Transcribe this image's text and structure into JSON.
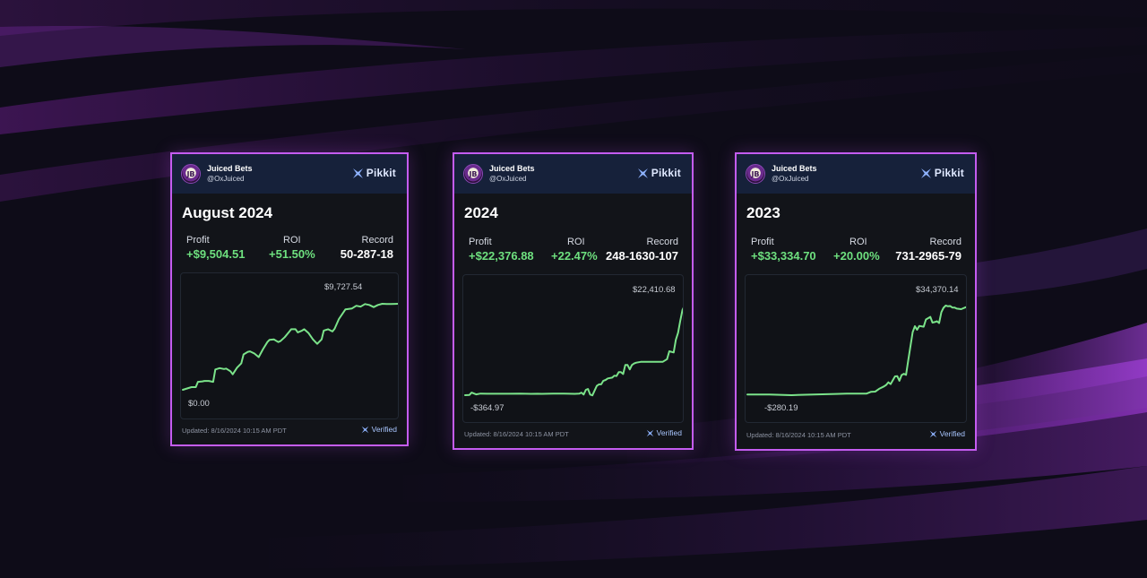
{
  "theme": {
    "accent": "#c45cf0",
    "positive": "#6ee07f",
    "line": "#7be38a",
    "card_bg": "#121419",
    "header_bg": "#16213a"
  },
  "cards": [
    {
      "account_name": "Juiced Bets",
      "account_handle": "@OxJuiced",
      "avatar_initials": "JB",
      "brand": "Pikkit",
      "title": "August 2024",
      "profit_label": "Profit",
      "profit_value": "+$9,504.51",
      "roi_label": "ROI",
      "roi_value": "+51.50%",
      "record_label": "Record",
      "record_value": "50-287-18",
      "chart_max_label": "$9,727.54",
      "chart_min_label": "$0.00",
      "updated": "Updated: 8/16/2024 10:15 AM PDT",
      "verified": "Verified",
      "chart_data": {
        "type": "line",
        "ylim": [
          0,
          9727.54
        ],
        "x": [
          0,
          2,
          4,
          6,
          7,
          9,
          10,
          12,
          14,
          15,
          17,
          19,
          20,
          22,
          23,
          25,
          27,
          28,
          30,
          31,
          33,
          35,
          37,
          39,
          40,
          42,
          44,
          45,
          47,
          49,
          50,
          52,
          53,
          55,
          56,
          58,
          60,
          62,
          64,
          65,
          67,
          69,
          70,
          72,
          75,
          78,
          80,
          82,
          84,
          86,
          88,
          90,
          92,
          94,
          96,
          98,
          100
        ],
        "y": [
          0,
          150,
          300,
          300,
          900,
          950,
          1000,
          1000,
          900,
          2300,
          2450,
          2350,
          2400,
          2100,
          1750,
          2500,
          3000,
          4000,
          4300,
          4350,
          4100,
          3700,
          4600,
          5400,
          5650,
          5700,
          5400,
          5500,
          5950,
          6550,
          6850,
          6850,
          6500,
          6700,
          6850,
          6400,
          5700,
          5200,
          5700,
          6700,
          6850,
          6600,
          6900,
          8000,
          9100,
          9200,
          9500,
          9400,
          9700,
          9600,
          9350,
          9600,
          9727.54,
          9700,
          9700,
          9720,
          9727.54
        ]
      }
    },
    {
      "account_name": "Juiced Bets",
      "account_handle": "@OxJuiced",
      "avatar_initials": "JB",
      "brand": "Pikkit",
      "title": "2024",
      "profit_label": "Profit",
      "profit_value": "+$22,376.88",
      "roi_label": "ROI",
      "roi_value": "+22.47%",
      "record_label": "Record",
      "record_value": "248-1630-107",
      "chart_max_label": "$22,410.68",
      "chart_min_label": "-$364.97",
      "updated": "Updated: 8/16/2024 10:15 AM PDT",
      "verified": "Verified",
      "chart_data": {
        "type": "line",
        "ylim": [
          -364.97,
          22410.68
        ],
        "x": [
          0,
          2,
          3,
          5,
          7,
          10,
          15,
          20,
          25,
          30,
          33,
          35,
          40,
          45,
          50,
          52,
          53,
          54,
          55,
          56,
          57,
          58,
          59,
          60,
          61,
          62,
          63,
          64,
          65,
          67,
          68,
          69,
          70,
          71,
          72,
          73,
          74,
          75,
          76,
          77,
          78,
          80,
          83,
          85,
          87,
          89,
          90,
          92,
          93,
          95,
          96,
          97,
          98,
          99,
          100
        ],
        "y": [
          -364.97,
          -300,
          300,
          -150,
          50,
          0,
          10,
          0,
          20,
          -30,
          0,
          -20,
          20,
          30,
          -20,
          30,
          300,
          -200,
          1000,
          1200,
          -200,
          -400,
          800,
          2000,
          2400,
          2400,
          3300,
          3500,
          3900,
          4100,
          4600,
          4500,
          5500,
          5500,
          5000,
          7300,
          7300,
          6200,
          7300,
          7700,
          7900,
          8100,
          8100,
          8100,
          8100,
          8100,
          8100,
          8800,
          10800,
          10500,
          13700,
          15500,
          18500,
          21300,
          22410.68
        ]
      }
    },
    {
      "account_name": "Juiced Bets",
      "account_handle": "@OxJuiced",
      "avatar_initials": "JB",
      "brand": "Pikkit",
      "title": "2023",
      "profit_label": "Profit",
      "profit_value": "+$33,334.70",
      "roi_label": "ROI",
      "roi_value": "+20.00%",
      "record_label": "Record",
      "record_value": "731-2965-79",
      "chart_max_label": "$34,370.14",
      "chart_min_label": "-$280.19",
      "updated": "Updated: 8/16/2024 10:15 AM PDT",
      "verified": "Verified",
      "chart_data": {
        "type": "line",
        "ylim": [
          -280.19,
          34370.14
        ],
        "x": [
          0,
          10,
          20,
          30,
          40,
          45,
          50,
          52,
          54,
          56,
          58,
          60,
          62,
          63,
          64,
          65,
          67,
          68,
          69,
          70,
          71,
          72,
          73,
          75,
          76,
          77,
          78,
          80,
          81,
          82,
          83,
          84,
          85,
          86,
          87,
          88,
          89,
          90,
          91,
          92,
          93,
          94,
          95,
          97,
          99,
          100
        ],
        "y": [
          0,
          0,
          -280.19,
          0,
          200,
          300,
          300,
          350,
          300,
          1000,
          1100,
          2300,
          3100,
          3700,
          4700,
          4000,
          7000,
          7100,
          5300,
          7500,
          8000,
          7600,
          13300,
          24100,
          26400,
          25000,
          26500,
          26200,
          29000,
          29500,
          30000,
          27800,
          28000,
          28300,
          27600,
          31800,
          33500,
          34370.14,
          34100,
          34200,
          33600,
          33600,
          33200,
          33000,
          33700,
          34000
        ]
      }
    }
  ]
}
